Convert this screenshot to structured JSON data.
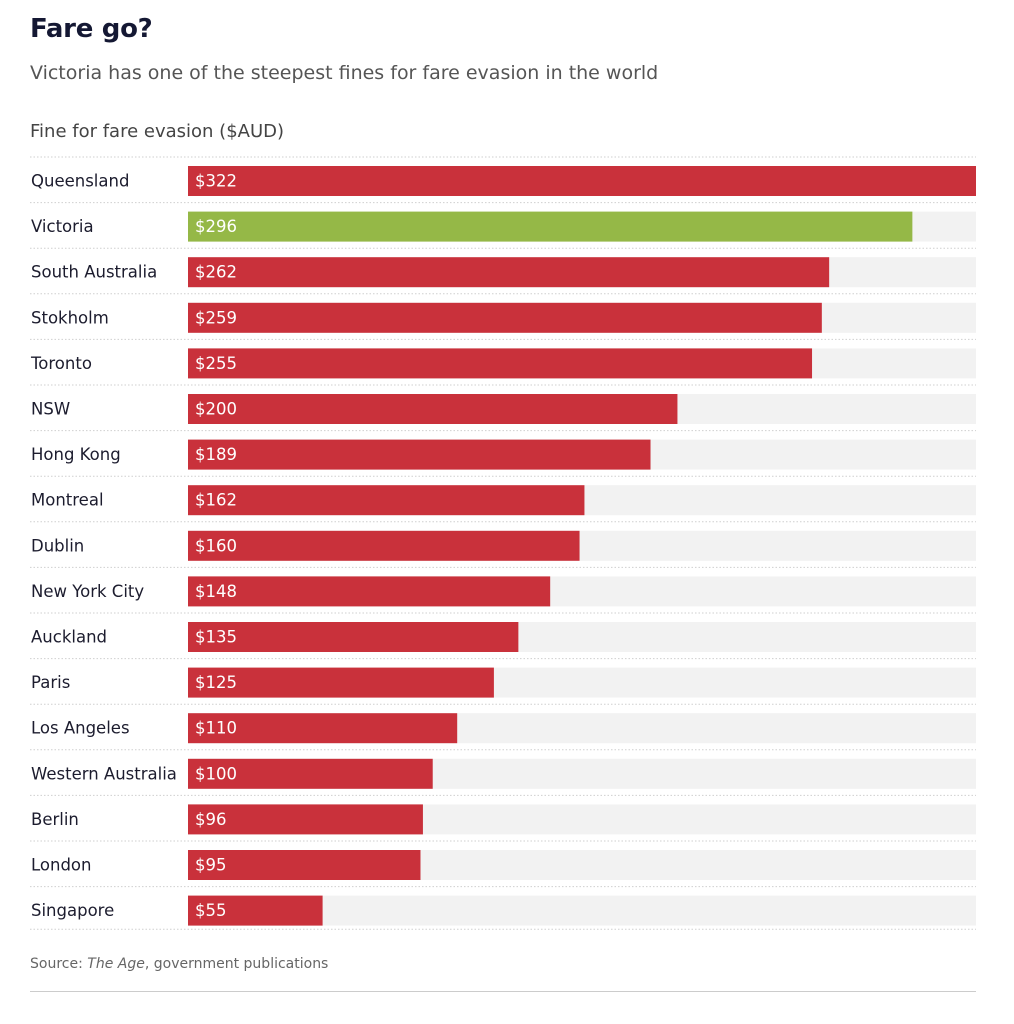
{
  "header": {
    "title": "Fare go?",
    "subtitle": "Victoria has one of the steepest fines for fare evasion in the world"
  },
  "colors": {
    "default_bar": "#c9313b",
    "highlight_bar": "#95b847",
    "track": "#f2f2f2",
    "divider": "#cfcfcf"
  },
  "chart_data": {
    "type": "bar",
    "orientation": "horizontal",
    "title": "Fare go?",
    "subtitle": "Victoria has one of the steepest fines for fare evasion in the world",
    "xlabel": "Fine for fare evasion ($AUD)",
    "ylabel": "",
    "xlim": [
      0,
      322
    ],
    "highlight": "Victoria",
    "categories": [
      "Queensland",
      "Victoria",
      "South Australia",
      "Stokholm",
      "Toronto",
      "NSW",
      "Hong Kong",
      "Montreal",
      "Dublin",
      "New York City",
      "Auckland",
      "Paris",
      "Los Angeles",
      "Western Australia",
      "Berlin",
      "London",
      "Singapore"
    ],
    "values": [
      322,
      296,
      262,
      259,
      255,
      200,
      189,
      162,
      160,
      148,
      135,
      125,
      110,
      100,
      96,
      95,
      55
    ],
    "labels": [
      "$322",
      "$296",
      "$262",
      "$259",
      "$255",
      "$200",
      "$189",
      "$162",
      "$160",
      "$148",
      "$135",
      "$125",
      "$110",
      "$100",
      "$96",
      "$95",
      "$55"
    ]
  },
  "source": {
    "prefix": "Source: ",
    "publication": "The Age",
    "suffix": ", government publications"
  }
}
